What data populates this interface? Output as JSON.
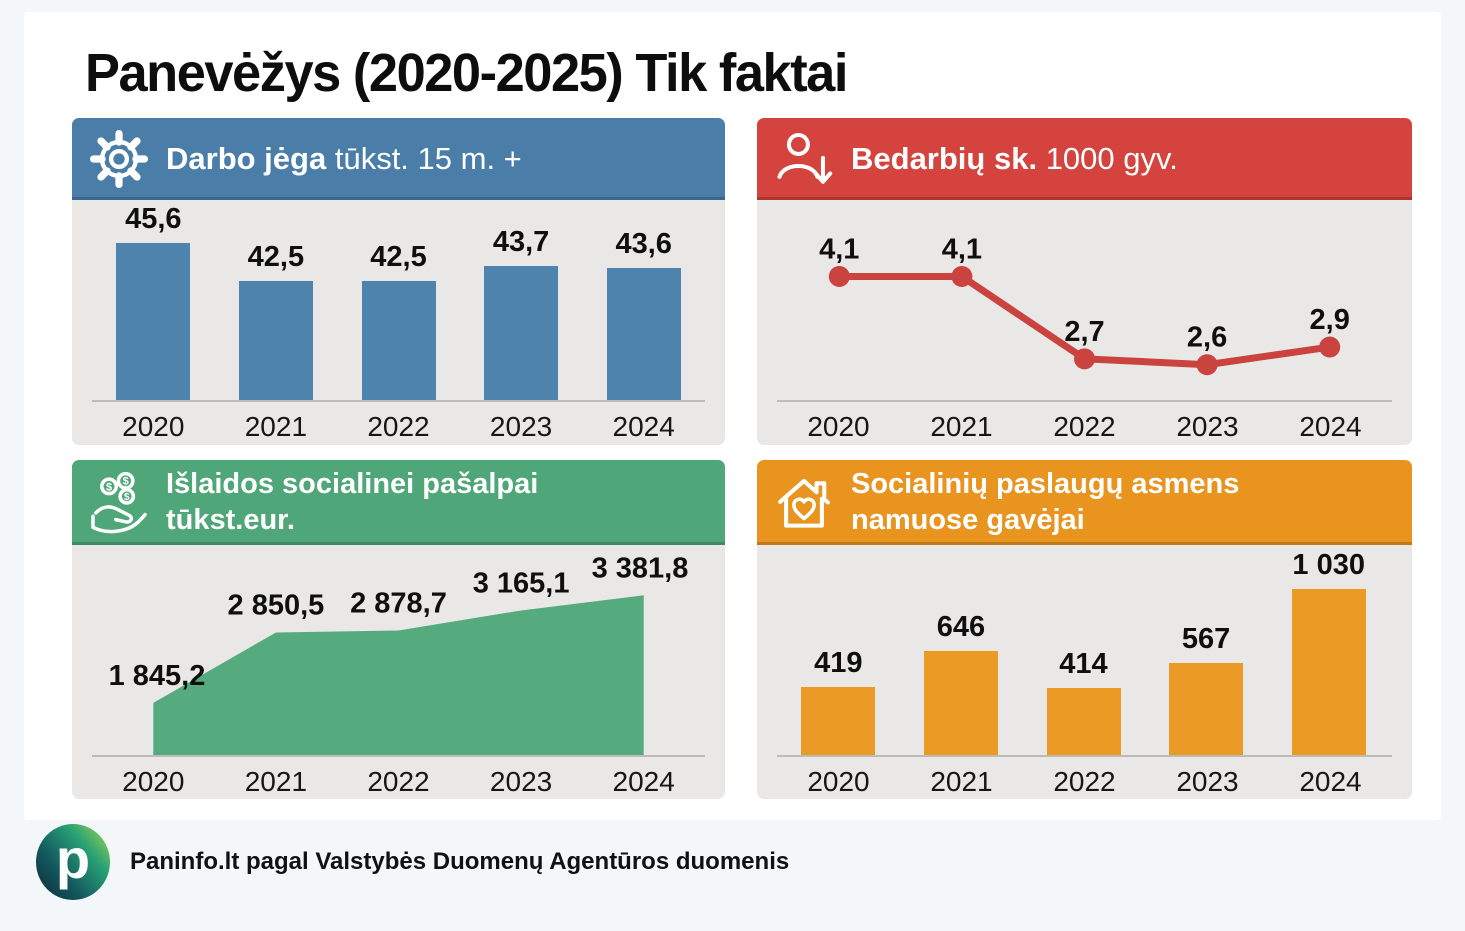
{
  "page": {
    "title": "Panevėžys (2020-2025) Tik faktai",
    "background_color": "#f3f7fa",
    "card_color": "#ffffff",
    "panel_chart_background": "#e9e8e6"
  },
  "footer": {
    "logo_letter": "p",
    "source_text": "Paninfo.lt pagal Valstybės Duomenų Agentūros duomenis"
  },
  "chart_data": [
    {
      "id": "darbo-jega",
      "type": "bar",
      "icon": "gear-icon",
      "title": {
        "bold": "Darbo jėga",
        "regular": "tūkst. 15 m. +"
      },
      "header_color": "#4a7ea9",
      "series_color": "#4e83ae",
      "categories": [
        "2020",
        "2021",
        "2022",
        "2023",
        "2024"
      ],
      "values": [
        45.6,
        42.5,
        42.5,
        43.7,
        43.6
      ],
      "value_labels": [
        "45,6",
        "42,5",
        "42,5",
        "43,7",
        "43,6"
      ],
      "ylim": [
        33,
        49
      ],
      "grid": false,
      "legend": false
    },
    {
      "id": "bedarbiu-sk",
      "type": "line",
      "icon": "person-arrow-down-icon",
      "title": {
        "bold": "Bedarbių sk.",
        "regular": "1000 gyv."
      },
      "header_color": "#d5433e",
      "series_color": "#cb433f",
      "categories": [
        "2020",
        "2021",
        "2022",
        "2023",
        "2024"
      ],
      "values": [
        4.1,
        4.1,
        2.7,
        2.6,
        2.9
      ],
      "value_labels": [
        "4,1",
        "4,1",
        "2,7",
        "2,6",
        "2,9"
      ],
      "ylim": [
        2.0,
        5.4
      ],
      "grid": false,
      "legend": false
    },
    {
      "id": "islaidos-socialinei-pasalpai",
      "type": "area",
      "icon": "hand-coins-icon",
      "title": {
        "line1": "Išlaidos socialinei pašalpai",
        "line2": "tūkst.eur."
      },
      "header_color": "#4fa678",
      "series_color": "#55ab7d",
      "categories": [
        "2020",
        "2021",
        "2022",
        "2023",
        "2024"
      ],
      "values": [
        1845.2,
        2850.5,
        2878.7,
        3165.1,
        3381.8
      ],
      "value_labels": [
        "1 845,2",
        "2 850,5",
        "2 878,7",
        "3 165,1",
        "3 381,8"
      ],
      "ylim": [
        1100,
        4100
      ],
      "grid": false,
      "legend": false
    },
    {
      "id": "socialiniu-paslaugu-gavejai",
      "type": "bar",
      "icon": "house-heart-icon",
      "title": {
        "line1": "Socialinių paslaugų asmens",
        "line2": "namuose gavėjai"
      },
      "header_color": "#e8941e",
      "series_color": "#eb9a25",
      "categories": [
        "2020",
        "2021",
        "2022",
        "2023",
        "2024"
      ],
      "values": [
        419,
        646,
        414,
        567,
        1030
      ],
      "value_labels": [
        "419",
        "646",
        "414",
        "567",
        "1 030"
      ],
      "ylim": [
        0,
        1300
      ],
      "grid": false,
      "legend": false
    }
  ]
}
